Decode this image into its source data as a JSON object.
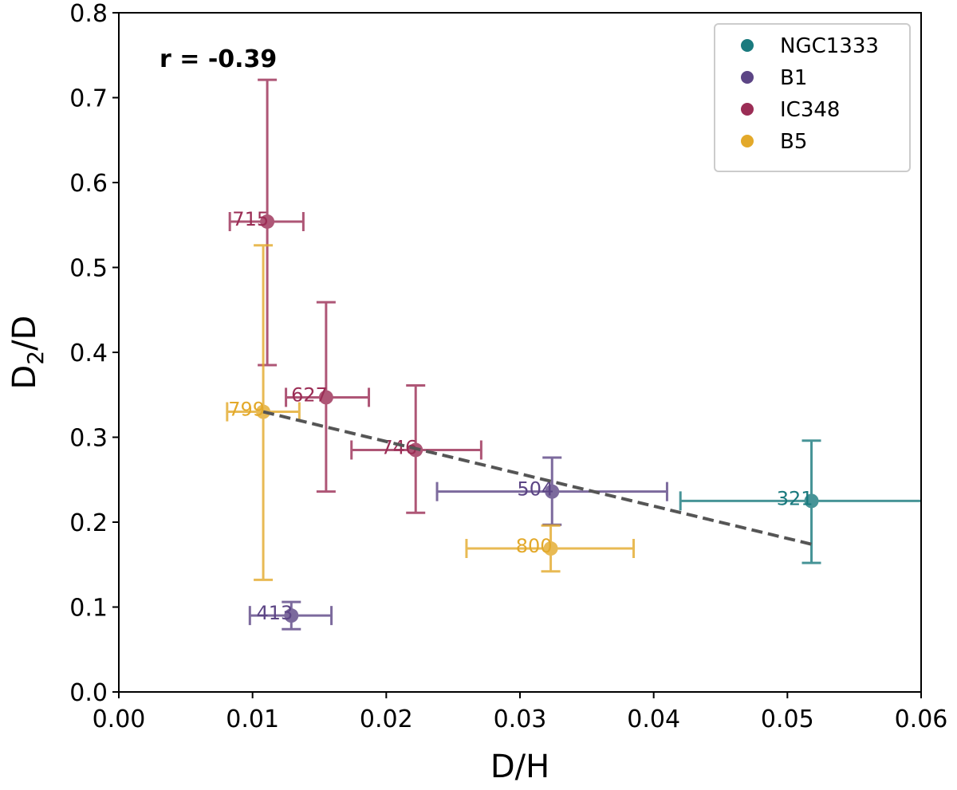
{
  "chart_data": {
    "type": "scatter",
    "xlabel": "D/H",
    "ylabel_main": "D",
    "ylabel_sub": "2",
    "ylabel_rest": "/D",
    "xlim": [
      0.0,
      0.06
    ],
    "ylim": [
      0.0,
      0.8
    ],
    "xticks": [
      "0.00",
      "0.01",
      "0.02",
      "0.03",
      "0.04",
      "0.05",
      "0.06"
    ],
    "yticks": [
      "0.0",
      "0.1",
      "0.2",
      "0.3",
      "0.4",
      "0.5",
      "0.6",
      "0.7",
      "0.8"
    ],
    "annotation": "r = -0.39",
    "legend_position": "top-right",
    "grid": false,
    "series": [
      {
        "name": "NGC1333",
        "color": "#1a7a7e",
        "points": [
          {
            "label": "321",
            "x": 0.0518,
            "y": 0.225,
            "xerr": [
              0.042,
              0.0616
            ],
            "yerr": [
              0.152,
              0.296
            ]
          }
        ]
      },
      {
        "name": "B1",
        "color": "#5c4585",
        "points": [
          {
            "label": "504",
            "x": 0.0324,
            "y": 0.236,
            "xerr": [
              0.0238,
              0.041
            ],
            "yerr": [
              0.197,
              0.276
            ]
          },
          {
            "label": "413",
            "x": 0.0129,
            "y": 0.09,
            "xerr": [
              0.0098,
              0.0159
            ],
            "yerr": [
              0.074,
              0.106
            ]
          }
        ]
      },
      {
        "name": "IC348",
        "color": "#9b2d55",
        "points": [
          {
            "label": "715",
            "x": 0.0111,
            "y": 0.554,
            "xerr": [
              0.0083,
              0.0138
            ],
            "yerr": [
              0.385,
              0.721
            ]
          },
          {
            "label": "627",
            "x": 0.0155,
            "y": 0.347,
            "xerr": [
              0.0125,
              0.0187
            ],
            "yerr": [
              0.236,
              0.459
            ]
          },
          {
            "label": "746",
            "x": 0.0222,
            "y": 0.285,
            "xerr": [
              0.0174,
              0.0271
            ],
            "yerr": [
              0.211,
              0.361
            ]
          }
        ]
      },
      {
        "name": "B5",
        "color": "#e3a92a",
        "points": [
          {
            "label": "799",
            "x": 0.0108,
            "y": 0.33,
            "xerr": [
              0.0081,
              0.0135
            ],
            "yerr": [
              0.132,
              0.526
            ]
          },
          {
            "label": "800",
            "x": 0.0323,
            "y": 0.169,
            "xerr": [
              0.026,
              0.0385
            ],
            "yerr": [
              0.142,
              0.196
            ]
          }
        ]
      }
    ],
    "trendline": {
      "x": [
        0.0108,
        0.0518
      ],
      "y": [
        0.33,
        0.174
      ],
      "color": "#555555",
      "style": "dashed"
    }
  }
}
